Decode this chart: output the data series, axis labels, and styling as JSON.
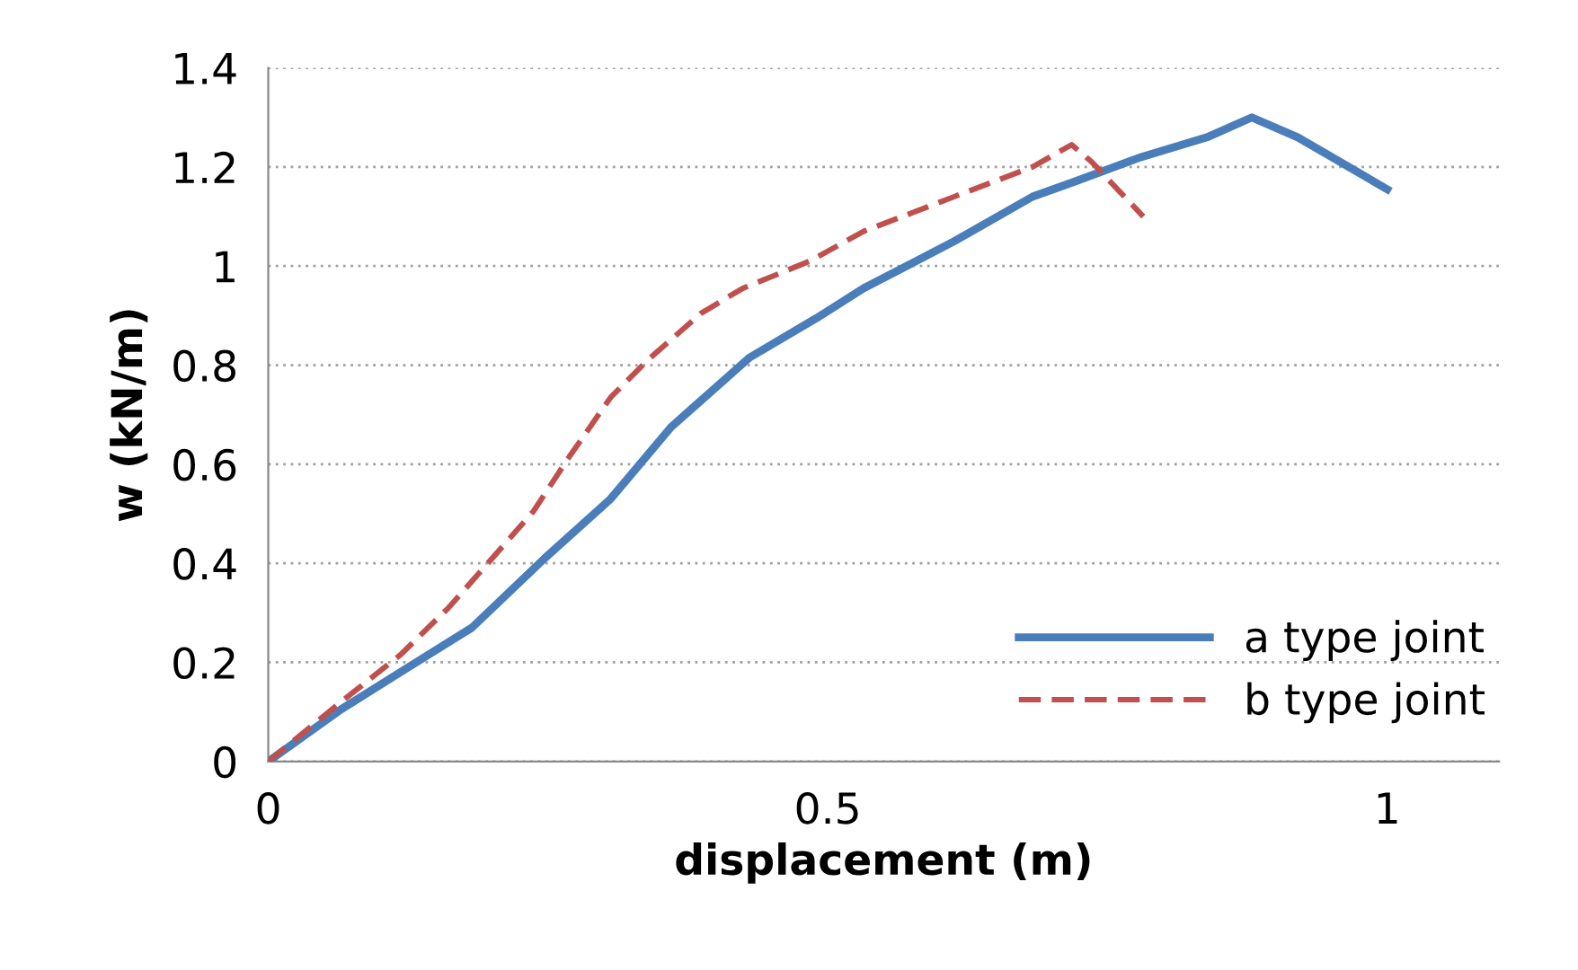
{
  "chart_data": {
    "type": "line",
    "xlabel": "displacement (m)",
    "ylabel": "w (kN/m)",
    "xlim": [
      0,
      1.1
    ],
    "xticks": [
      0,
      0.5,
      1
    ],
    "ylim": [
      0,
      1.4
    ],
    "yticks": [
      0,
      {
        "value": 0.2,
        "label": "0.2"
      },
      {
        "value": 0.4,
        "label": "0.4"
      },
      {
        "value": 0.6,
        "label": "0.6"
      },
      {
        "value": 0.8,
        "label": "0.8"
      },
      1,
      {
        "value": 1.2,
        "label": "1.2"
      },
      {
        "value": 1.4,
        "label": "1.4"
      }
    ],
    "grid": "y",
    "legend": "bottom right",
    "series": [
      {
        "name": "a type joint",
        "color": "#4a7ebb",
        "line_style": "solid",
        "x": [
          0,
          0.065,
          0.118,
          0.182,
          0.247,
          0.306,
          0.36,
          0.43,
          0.49,
          0.532,
          0.613,
          0.683,
          0.72,
          0.78,
          0.839,
          0.879,
          0.92,
          1.0
        ],
        "values": [
          0,
          0.105,
          0.18,
          0.27,
          0.41,
          0.53,
          0.675,
          0.815,
          0.895,
          0.955,
          1.05,
          1.14,
          1.17,
          1.22,
          1.26,
          1.3,
          1.26,
          1.155
        ]
      },
      {
        "name": "b type joint",
        "color": "#c0504d",
        "line_style": "dashed",
        "x": [
          0,
          0.065,
          0.118,
          0.161,
          0.204,
          0.237,
          0.269,
          0.306,
          0.339,
          0.387,
          0.424,
          0.484,
          0.532,
          0.613,
          0.683,
          0.718,
          0.736,
          0.782
        ],
        "values": [
          0,
          0.12,
          0.215,
          0.31,
          0.42,
          0.505,
          0.615,
          0.735,
          0.81,
          0.905,
          0.955,
          1.01,
          1.07,
          1.14,
          1.2,
          1.245,
          1.21,
          1.1
        ]
      }
    ]
  }
}
